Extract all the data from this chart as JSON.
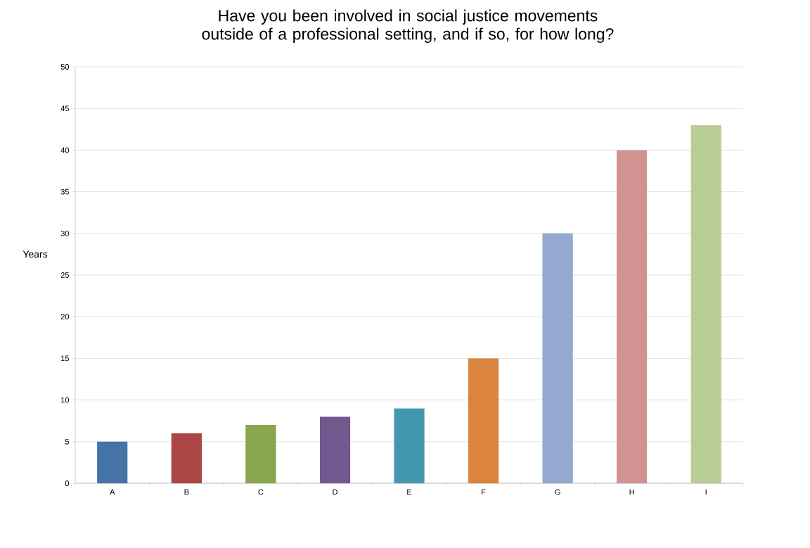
{
  "chart_data": {
    "type": "bar",
    "title": "Have you been involved in social justice movements outside of a professional setting, and if so, for how long?",
    "ylabel": "Years",
    "categories": [
      "A",
      "B",
      "C",
      "D",
      "E",
      "F",
      "G",
      "H",
      "I"
    ],
    "values": [
      5,
      6,
      7,
      8,
      9,
      15,
      30,
      40,
      43
    ],
    "colors": [
      "#4572a7",
      "#aa4643",
      "#89a54e",
      "#71588f",
      "#4198af",
      "#db843d",
      "#93a9cf",
      "#d19392",
      "#b9cd96"
    ],
    "ylim": [
      0,
      50
    ],
    "yticks": [
      0,
      5,
      10,
      15,
      20,
      25,
      30,
      35,
      40,
      45,
      50
    ],
    "grid": "y"
  }
}
